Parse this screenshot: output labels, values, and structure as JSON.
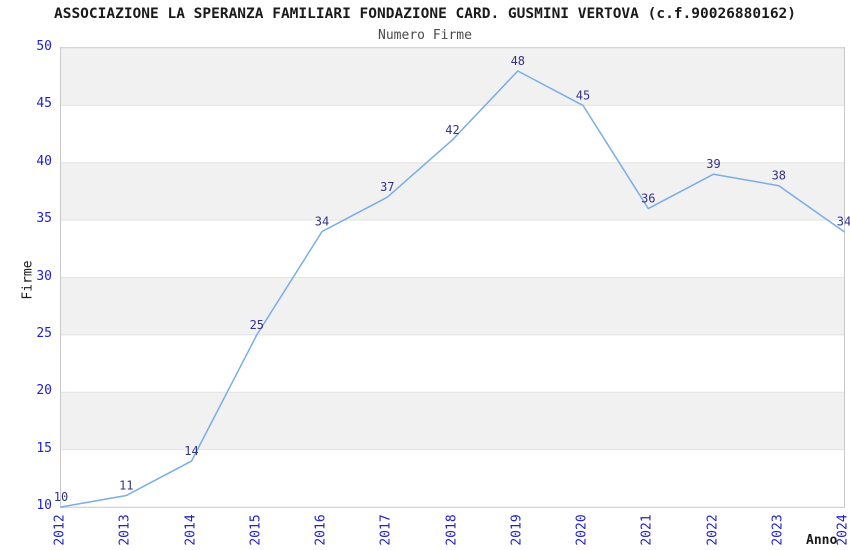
{
  "header": {
    "title": "ASSOCIAZIONE LA SPERANZA FAMILIARI FONDAZIONE CARD. GUSMINI VERTOVA (c.f.90026880162)",
    "subtitle": "Numero Firme"
  },
  "chart_data": {
    "type": "line",
    "title": "ASSOCIAZIONE LA SPERANZA FAMILIARI FONDAZIONE CARD. GUSMINI VERTOVA (c.f.90026880162)",
    "subtitle": "Numero Firme",
    "categories": [
      "2012",
      "2013",
      "2014",
      "2015",
      "2016",
      "2017",
      "2018",
      "2019",
      "2020",
      "2021",
      "2022",
      "2023",
      "2024"
    ],
    "values": [
      10,
      11,
      14,
      25,
      34,
      37,
      42,
      48,
      45,
      36,
      39,
      38,
      34
    ],
    "xlabel": "Anno",
    "ylabel": "Firme",
    "ylim": [
      10,
      50
    ],
    "yticks": [
      10,
      15,
      20,
      25,
      30,
      35,
      40,
      45,
      50
    ],
    "grid": "horizontal-bands",
    "legend": "none",
    "data_labels_visible": true,
    "colors": {
      "line": "#7aade8",
      "band": "#f1f1f1",
      "gridline": "#e3e3e3",
      "plot_border": "#c8c8c8",
      "tick_label": "#2222cc",
      "data_label": "#333388",
      "title": "#1a1a1a",
      "subtitle": "#4a4a4a",
      "axis_title": "#1a1a1a",
      "background": "#ffffff"
    }
  }
}
